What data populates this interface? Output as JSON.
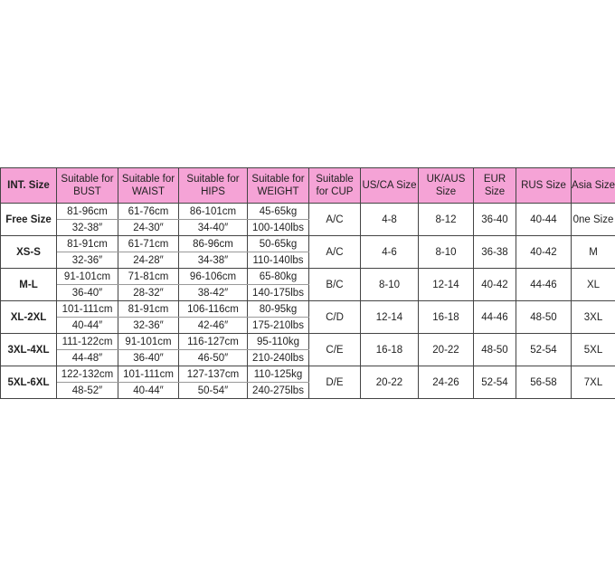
{
  "header_color": "#f5a3d6",
  "headers": [
    "INT. Size",
    "Suitable for BUST",
    "Suitable for WAIST",
    "Suitable for HIPS",
    "Suitable for WEIGHT",
    "Suitable for CUP",
    "US/CA Size",
    "UK/AUS Size",
    "EUR Size",
    "RUS Size",
    "Asia Size"
  ],
  "rows": [
    {
      "size": "Free Size",
      "bust": [
        "81-96cm",
        "32-38″"
      ],
      "waist": [
        "61-76cm",
        "24-30″"
      ],
      "hips": [
        "86-101cm",
        "34-40″"
      ],
      "weight": [
        "45-65kg",
        "100-140lbs"
      ],
      "cup": "A/C",
      "us": "4-8",
      "uk": "8-12",
      "eur": "36-40",
      "rus": "40-44",
      "asia": "0ne Size"
    },
    {
      "size": "XS-S",
      "bust": [
        "81-91cm",
        "32-36″"
      ],
      "waist": [
        "61-71cm",
        "24-28″"
      ],
      "hips": [
        "86-96cm",
        "34-38″"
      ],
      "weight": [
        "50-65kg",
        "110-140lbs"
      ],
      "cup": "A/C",
      "us": "4-6",
      "uk": "8-10",
      "eur": "36-38",
      "rus": "40-42",
      "asia": "M"
    },
    {
      "size": "M-L",
      "bust": [
        "91-101cm",
        "36-40″"
      ],
      "waist": [
        "71-81cm",
        "28-32″"
      ],
      "hips": [
        "96-106cm",
        "38-42″"
      ],
      "weight": [
        "65-80kg",
        "140-175lbs"
      ],
      "cup": "B/C",
      "us": "8-10",
      "uk": "12-14",
      "eur": "40-42",
      "rus": "44-46",
      "asia": "XL"
    },
    {
      "size": "XL-2XL",
      "bust": [
        "101-111cm",
        "40-44″"
      ],
      "waist": [
        "81-91cm",
        "32-36″"
      ],
      "hips": [
        "106-116cm",
        "42-46″"
      ],
      "weight": [
        "80-95kg",
        "175-210lbs"
      ],
      "cup": "C/D",
      "us": "12-14",
      "uk": "16-18",
      "eur": "44-46",
      "rus": "48-50",
      "asia": "3XL"
    },
    {
      "size": "3XL-4XL",
      "bust": [
        "111-122cm",
        "44-48″"
      ],
      "waist": [
        "91-101cm",
        "36-40″"
      ],
      "hips": [
        "116-127cm",
        "46-50″"
      ],
      "weight": [
        "95-110kg",
        "210-240lbs"
      ],
      "cup": "C/E",
      "us": "16-18",
      "uk": "20-22",
      "eur": "48-50",
      "rus": "52-54",
      "asia": "5XL"
    },
    {
      "size": "5XL-6XL",
      "bust": [
        "122-132cm",
        "48-52″"
      ],
      "waist": [
        "101-111cm",
        "40-44″"
      ],
      "hips": [
        "127-137cm",
        "50-54″"
      ],
      "weight": [
        "110-125kg",
        "240-275lbs"
      ],
      "cup": "D/E",
      "us": "20-22",
      "uk": "24-26",
      "eur": "52-54",
      "rus": "56-58",
      "asia": "7XL"
    }
  ]
}
